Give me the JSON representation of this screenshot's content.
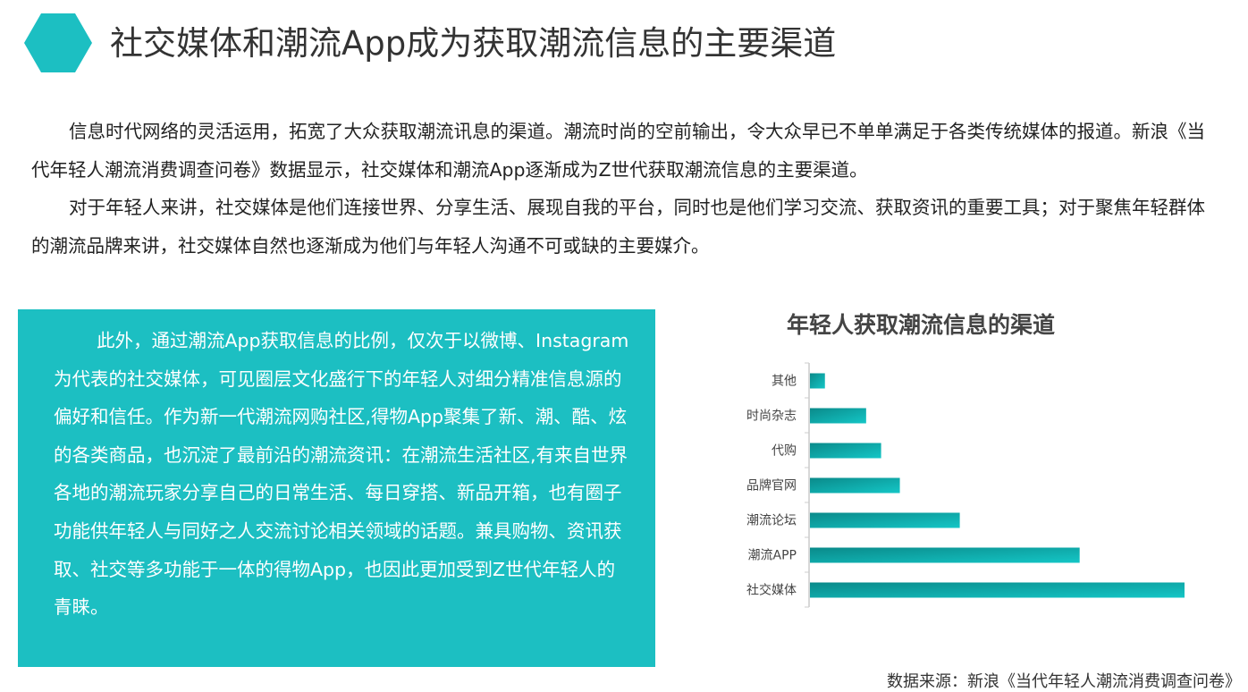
{
  "header": {
    "title": "社交媒体和潮流App成为获取潮流信息的主要渠道",
    "accent": "#1cbfc2"
  },
  "intro": [
    "信息时代网络的灵活运用，拓宽了大众获取潮流讯息的渠道。潮流时尚的空前输出，令大众早已不单单满足于各类传统媒体的报道。新浪《当代年轻人潮流消费调查问卷》数据显示，社交媒体和潮流App逐渐成为Z世代获取潮流信息的主要渠道。",
    "对于年轻人来讲，社交媒体是他们连接世界、分享生活、展现自我的平台，同时也是他们学习交流、获取资讯的重要工具；对于聚焦年轻群体的潮流品牌来讲，社交媒体自然也逐渐成为他们与年轻人沟通不可或缺的主要媒介。"
  ],
  "box_text": "此外，通过潮流App获取信息的比例，仅次于以微博、Instagram为代表的社交媒体，可见圈层文化盛行下的年轻人对细分精准信息源的偏好和信任。作为新一代潮流网购社区,得物App聚集了新、潮、酷、炫的各类商品，也沉淀了最前沿的潮流资讯：在潮流生活社区,有来自世界各地的潮流玩家分享自己的日常生活、每日穿搭、新品开箱，也有圈子功能供年轻人与同好之人交流讨论相关领域的话题。兼具购物、资讯获取、社交等多功能于一体的得物App，也因此更加受到Z世代年轻人的青睐。",
  "chart_data": {
    "type": "bar",
    "orientation": "horizontal",
    "title": "年轻人获取潮流信息的渠道",
    "categories": [
      "其他",
      "时尚杂志",
      "代购",
      "品牌官网",
      "潮流论坛",
      "潮流APP",
      "社交媒体"
    ],
    "values": [
      4,
      15,
      19,
      24,
      40,
      72,
      100
    ],
    "value_scale": "relative (no axis values shown)",
    "xlim": [
      0,
      100
    ],
    "grid": false,
    "bar_color": "#1cbfc2"
  },
  "source": "数据来源：新浪《当代年轻人潮流消费调查问卷》"
}
